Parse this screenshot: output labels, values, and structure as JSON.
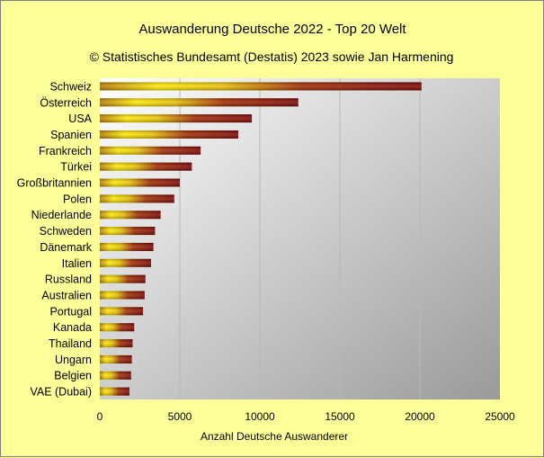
{
  "chart_data": {
    "type": "bar",
    "orientation": "horizontal",
    "title": "Auswanderung Deutsche 2022 - Top 20 Welt",
    "subtitle": "© Statistisches Bundesamt (Destatis) 2023 sowie Jan Harmening",
    "xlabel": "Anzahl Deutsche Auswanderer",
    "ylabel": "",
    "xlim": [
      0,
      25000
    ],
    "xticks": [
      "0",
      "5000",
      "10000",
      "15000",
      "20000",
      "25000"
    ],
    "grid": "vertical",
    "legend": "none",
    "categories": [
      "Schweiz",
      "Österreich",
      "USA",
      "Spanien",
      "Frankreich",
      "Türkei",
      "Großbritannien",
      "Polen",
      "Niederlande",
      "Schweden",
      "Dänemark",
      "Italien",
      "Russland",
      "Australien",
      "Portugal",
      "Kanada",
      "Thailand",
      "Ungarn",
      "Belgien",
      "VAE (Dubai)"
    ],
    "values": [
      20100,
      12400,
      9500,
      8650,
      6300,
      5750,
      5000,
      4650,
      3800,
      3450,
      3350,
      3200,
      2850,
      2800,
      2700,
      2150,
      2050,
      2000,
      1950,
      1850
    ],
    "colors": {
      "plot_bg_light": "#ffffff",
      "plot_bg_dark": "#9a9a9a",
      "bar_gold": "#ffea00",
      "bar_red": "#7a0000",
      "page_bg": "#ffff99",
      "gridline": "#b8b8b8"
    }
  }
}
